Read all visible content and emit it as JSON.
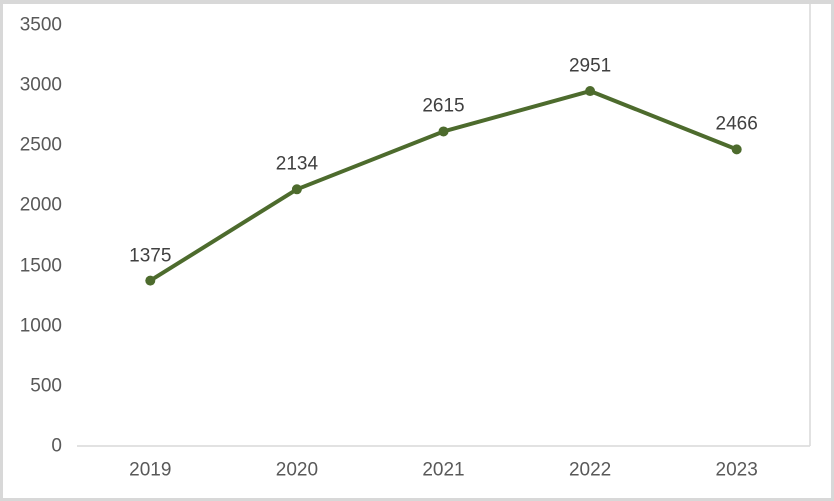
{
  "chart_data": {
    "type": "line",
    "categories": [
      "2019",
      "2020",
      "2021",
      "2022",
      "2023"
    ],
    "series": [
      {
        "values": [
          1375,
          2134,
          2615,
          2951,
          2466
        ]
      }
    ],
    "data_labels": [
      "1375",
      "2134",
      "2615",
      "2951",
      "2466"
    ],
    "title": "",
    "xlabel": "",
    "ylabel": "",
    "ylim": [
      0,
      3500
    ],
    "yticks": [
      3500,
      3000,
      2500,
      2000,
      1500,
      1000,
      500,
      0
    ],
    "grid": false,
    "legend": false,
    "marker": "circle",
    "colors": {
      "line": "#4d6b2d",
      "marker": "#4d6b2d",
      "axis_line": "#d9d9d9",
      "axis_text": "#595959",
      "data_label_text": "#404040",
      "frame_border": "#d8d8d8",
      "background": "#ffffff"
    }
  }
}
